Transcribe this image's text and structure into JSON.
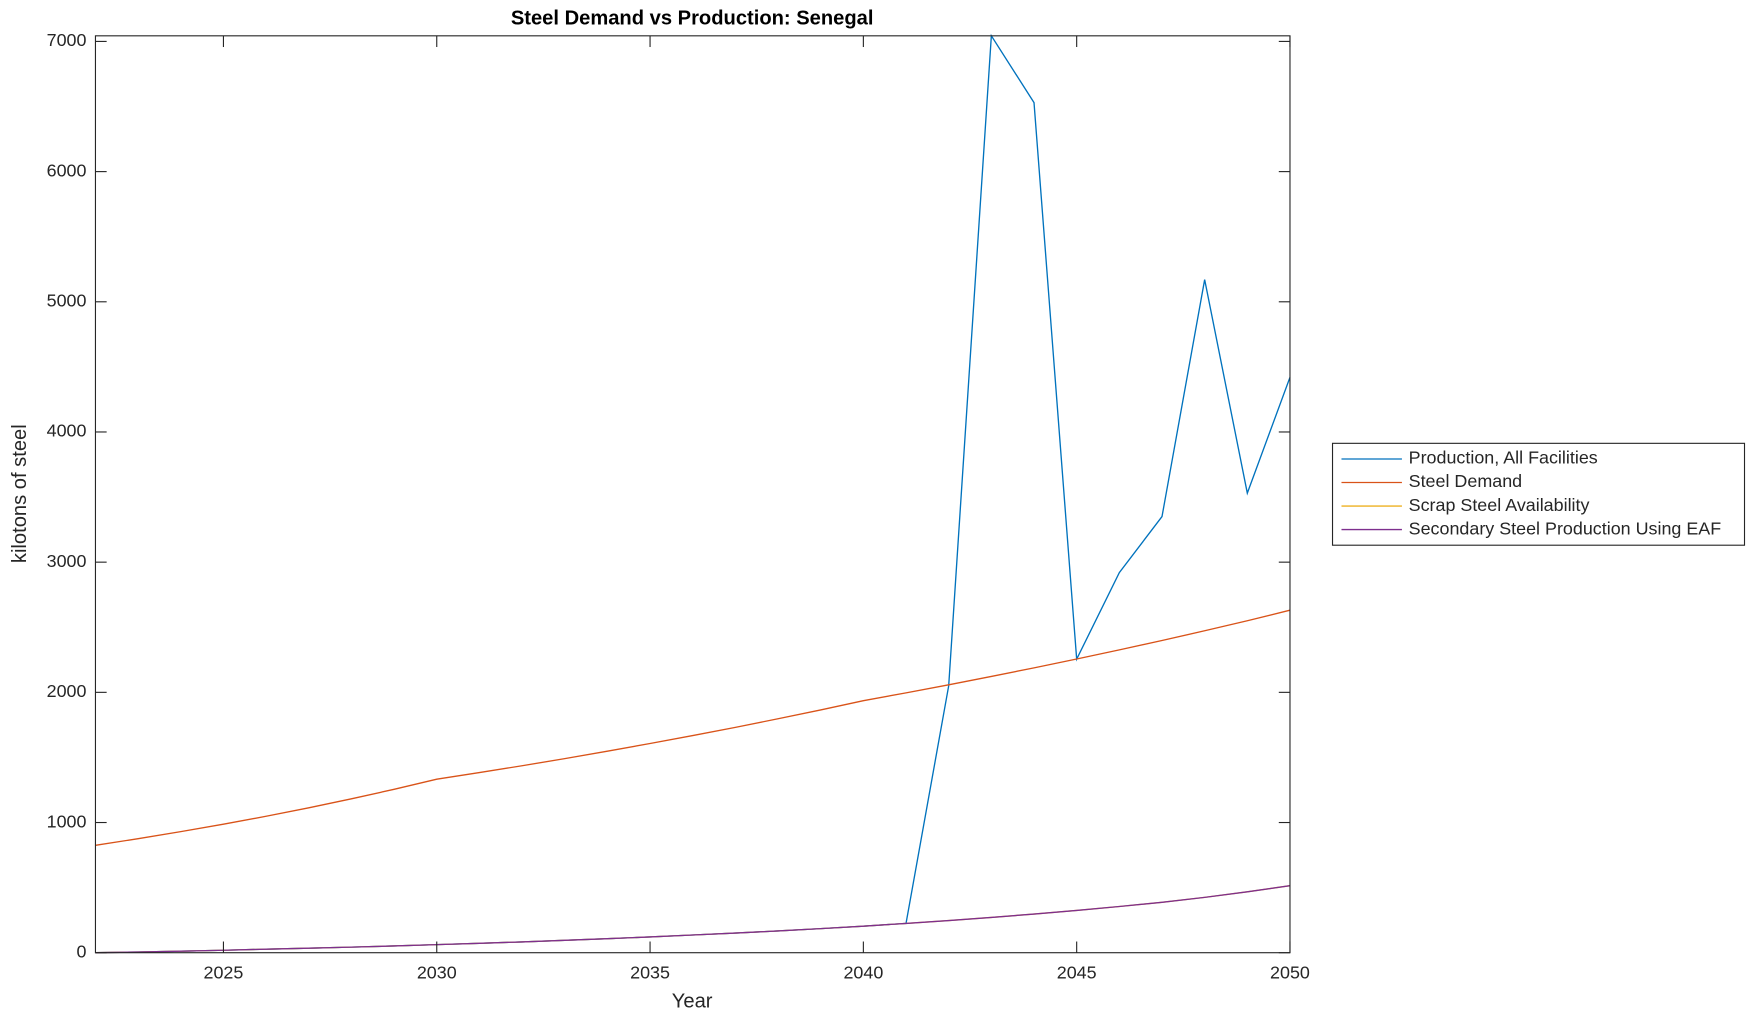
{
  "chart_data": {
    "type": "line",
    "title": "Steel Demand vs Production: Senegal",
    "xlabel": "Year",
    "ylabel": "kilotons of steel",
    "x": [
      2022,
      2023,
      2024,
      2025,
      2026,
      2027,
      2028,
      2029,
      2030,
      2031,
      2032,
      2033,
      2034,
      2035,
      2036,
      2037,
      2038,
      2039,
      2040,
      2041,
      2042,
      2043,
      2044,
      2045,
      2046,
      2047,
      2048,
      2049,
      2050
    ],
    "series": [
      {
        "name": "Production, All Facilities",
        "color": "#0072BD",
        "values": [
          0,
          5,
          12,
          19,
          27,
          35,
          43,
          52,
          62,
          72,
          83,
          95,
          108,
          121,
          136,
          151,
          167,
          185,
          204,
          225,
          2050,
          7043,
          6530,
          2255,
          2920,
          3350,
          5170,
          3530,
          4420
        ]
      },
      {
        "name": "Steel Demand",
        "color": "#D95319",
        "values": [
          825,
          876,
          930,
          987,
          1048,
          1113,
          1182,
          1255,
          1333,
          1384,
          1436,
          1491,
          1548,
          1607,
          1668,
          1731,
          1797,
          1865,
          1936,
          1996,
          2058,
          2122,
          2188,
          2256,
          2326,
          2398,
          2473,
          2550,
          2631
        ]
      },
      {
        "name": "Scrap Steel Availability",
        "color": "#EDB120",
        "values": [
          0,
          5,
          12,
          19,
          27,
          35,
          43,
          52,
          62,
          72,
          83,
          95,
          108,
          121,
          136,
          151,
          167,
          185,
          204,
          225,
          247,
          271,
          297,
          325,
          355,
          387,
          425,
          468,
          515
        ]
      },
      {
        "name": "Secondary Steel Production Using EAF",
        "color": "#7E2F8E",
        "values": [
          0,
          5,
          12,
          19,
          27,
          35,
          43,
          52,
          62,
          72,
          83,
          95,
          108,
          121,
          136,
          151,
          167,
          185,
          204,
          225,
          247,
          271,
          297,
          325,
          355,
          387,
          425,
          468,
          515
        ]
      }
    ],
    "xlim": [
      2022,
      2050
    ],
    "xticks": [
      2025,
      2030,
      2035,
      2040,
      2045,
      2050
    ],
    "ylim": [
      0,
      7043
    ],
    "yticks": [
      0,
      1000,
      2000,
      3000,
      4000,
      5000,
      6000,
      7000
    ],
    "legend": "outside-right"
  }
}
